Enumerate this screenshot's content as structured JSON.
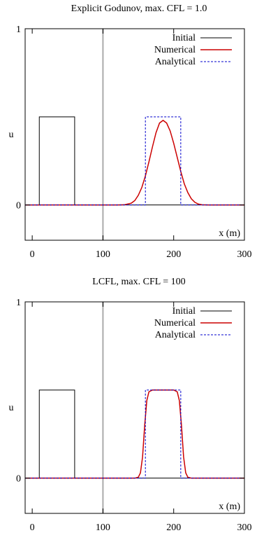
{
  "chart_data": [
    {
      "type": "line",
      "title": "Explicit Godunov, max. CFL = 1.0",
      "xlabel": "x (m)",
      "ylabel": "u",
      "xlim": [
        -10,
        300
      ],
      "ylim": [
        -0.2,
        1
      ],
      "x_ticks": [
        0,
        100,
        200,
        300
      ],
      "y_ticks": [
        0,
        1
      ],
      "grid": false,
      "legend": "top-right",
      "vertical_marker": {
        "x": 100,
        "color": "#aaaaaa"
      },
      "series": [
        {
          "name": "Initial",
          "color": "#000000",
          "dash": "solid",
          "x": [
            -10,
            10,
            10,
            60,
            60,
            300
          ],
          "y": [
            0,
            0,
            0.5,
            0.5,
            0,
            0
          ]
        },
        {
          "name": "Numerical",
          "color": "#cc0000",
          "dash": "solid",
          "x": [
            -10,
            120,
            130,
            140,
            145,
            150,
            155,
            160,
            165,
            170,
            175,
            180,
            185,
            190,
            195,
            200,
            205,
            210,
            215,
            220,
            225,
            230,
            235,
            240,
            250,
            300
          ],
          "y": [
            0,
            0,
            0.001,
            0.01,
            0.025,
            0.055,
            0.1,
            0.165,
            0.245,
            0.33,
            0.41,
            0.465,
            0.48,
            0.465,
            0.42,
            0.35,
            0.27,
            0.19,
            0.12,
            0.07,
            0.035,
            0.015,
            0.005,
            0.001,
            0,
            0
          ]
        },
        {
          "name": "Analytical",
          "color": "#0000cc",
          "dash": "dashed",
          "x": [
            -10,
            160,
            160,
            210,
            210,
            300
          ],
          "y": [
            0,
            0,
            0.5,
            0.5,
            0,
            0
          ]
        }
      ]
    },
    {
      "type": "line",
      "title": "LCFL, max. CFL = 100",
      "xlabel": "x (m)",
      "ylabel": "u",
      "xlim": [
        -10,
        300
      ],
      "ylim": [
        -0.2,
        1
      ],
      "x_ticks": [
        0,
        100,
        200,
        300
      ],
      "y_ticks": [
        0,
        1
      ],
      "grid": false,
      "legend": "top-right",
      "vertical_marker": {
        "x": 100,
        "color": "#aaaaaa"
      },
      "series": [
        {
          "name": "Initial",
          "color": "#000000",
          "dash": "solid",
          "x": [
            -10,
            10,
            10,
            60,
            60,
            300
          ],
          "y": [
            0,
            0,
            0.5,
            0.5,
            0,
            0
          ]
        },
        {
          "name": "Numerical",
          "color": "#cc0000",
          "dash": "solid",
          "x": [
            -10,
            145,
            150,
            153,
            156,
            159,
            162,
            165,
            170,
            200,
            205,
            208,
            211,
            214,
            217,
            220,
            225,
            300
          ],
          "y": [
            0,
            0,
            0.005,
            0.03,
            0.12,
            0.3,
            0.44,
            0.49,
            0.5,
            0.5,
            0.49,
            0.44,
            0.3,
            0.12,
            0.03,
            0.005,
            0,
            0
          ]
        },
        {
          "name": "Analytical",
          "color": "#0000cc",
          "dash": "dashed",
          "x": [
            -10,
            160,
            160,
            210,
            210,
            300
          ],
          "y": [
            0,
            0,
            0.5,
            0.5,
            0,
            0
          ]
        }
      ]
    }
  ]
}
